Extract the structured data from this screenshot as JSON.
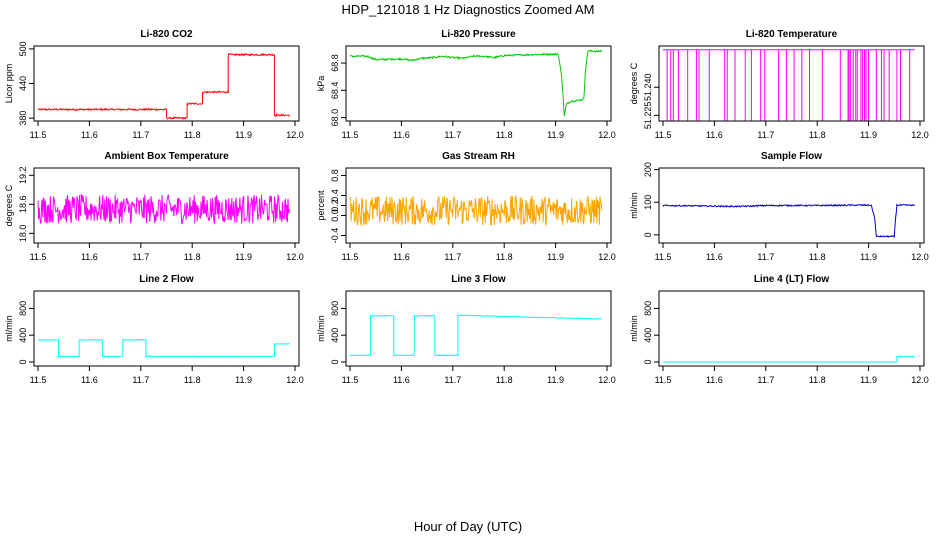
{
  "title": "HDP_121018  1 Hz Diagnostics Zoomed AM",
  "xlabel": "Hour of Day (UTC)",
  "chart_data": [
    {
      "type": "line",
      "title": "Li-820 CO2",
      "ylabel": "Licor ppm",
      "color": "#ff0000",
      "xlim": [
        11.5,
        12.0
      ],
      "ylim": [
        375,
        505
      ],
      "yticks": [
        "380",
        "440",
        "500"
      ],
      "ytick_values": [
        380,
        440,
        500
      ],
      "xticks": [
        "11.5",
        "11.6",
        "11.7",
        "11.8",
        "11.9",
        "12.0"
      ],
      "series": [
        {
          "noise": 1.5,
          "points": [
            [
              11.5,
              395
            ],
            [
              11.75,
              395
            ],
            [
              11.75,
              380
            ],
            [
              11.79,
              380
            ],
            [
              11.79,
              405
            ],
            [
              11.82,
              405
            ],
            [
              11.82,
              425
            ],
            [
              11.87,
              425
            ],
            [
              11.87,
              490
            ],
            [
              11.96,
              490
            ],
            [
              11.96,
              385
            ],
            [
              11.99,
              385
            ]
          ]
        }
      ]
    },
    {
      "type": "line",
      "title": "Li-820 Pressure",
      "ylabel": "kPa",
      "color": "#00cc00",
      "xlim": [
        11.5,
        12.0
      ],
      "ylim": [
        67.95,
        69.05
      ],
      "yticks": [
        "68.0",
        "68.4",
        "68.8"
      ],
      "ytick_values": [
        68.0,
        68.4,
        68.8
      ],
      "xticks": [
        "11.5",
        "11.6",
        "11.7",
        "11.8",
        "11.9",
        "12.0"
      ],
      "series": [
        {
          "noise": 0.012,
          "points": [
            [
              11.5,
              68.9
            ],
            [
              11.535,
              68.9
            ],
            [
              11.54,
              68.88
            ],
            [
              11.55,
              68.85
            ],
            [
              11.6,
              68.86
            ],
            [
              11.62,
              68.84
            ],
            [
              11.64,
              68.87
            ],
            [
              11.66,
              68.88
            ],
            [
              11.68,
              68.9
            ],
            [
              11.7,
              68.88
            ],
            [
              11.72,
              68.87
            ],
            [
              11.74,
              68.9
            ],
            [
              11.76,
              68.9
            ],
            [
              11.78,
              68.88
            ],
            [
              11.8,
              68.91
            ],
            [
              11.84,
              68.92
            ],
            [
              11.88,
              68.93
            ],
            [
              11.905,
              68.93
            ],
            [
              11.912,
              68.6
            ],
            [
              11.917,
              68.02
            ],
            [
              11.921,
              68.2
            ],
            [
              11.93,
              68.24
            ],
            [
              11.95,
              68.26
            ],
            [
              11.955,
              68.28
            ],
            [
              11.958,
              68.7
            ],
            [
              11.963,
              68.98
            ],
            [
              11.98,
              68.97
            ],
            [
              11.99,
              68.98
            ]
          ]
        }
      ]
    },
    {
      "type": "line",
      "title": "Li-820 Temperature",
      "ylabel": "degrees C",
      "color": "#ff00ff",
      "xlim": [
        11.5,
        12.0
      ],
      "ylim": [
        51.222,
        51.262
      ],
      "yticks": [
        "51.225",
        "51.240"
      ],
      "ytick_values": [
        51.225,
        51.24
      ],
      "xticks": [
        "11.5",
        "11.6",
        "11.7",
        "11.8",
        "11.9",
        "12.0"
      ],
      "series": [
        {
          "noise": 0,
          "points": [
            [
              11.5,
              51.26
            ],
            [
              11.99,
              51.26
            ]
          ]
        }
      ]
    },
    {
      "type": "line",
      "title": "Ambient Box Temperature",
      "ylabel": "degrees C",
      "color": "#ff00ff",
      "xlim": [
        11.5,
        12.0
      ],
      "ylim": [
        17.8,
        19.35
      ],
      "yticks": [
        "18.0",
        "18.6",
        "19.2"
      ],
      "ytick_values": [
        18.0,
        18.6,
        19.2
      ],
      "xticks": [
        "11.5",
        "11.6",
        "11.7",
        "11.8",
        "11.9",
        "12.0"
      ],
      "series": [
        {
          "noise": 0.3,
          "points": [
            [
              11.5,
              18.5
            ],
            [
              11.99,
              18.5
            ]
          ]
        }
      ]
    },
    {
      "type": "line",
      "title": "Gas Stream RH",
      "ylabel": "percent",
      "color": "#ffa500",
      "xlim": [
        11.5,
        12.0
      ],
      "ylim": [
        -0.55,
        0.95
      ],
      "yticks": [
        "-0.4",
        "0.0",
        "0.2",
        "0.4",
        "0.8"
      ],
      "ytick_values": [
        -0.4,
        0.0,
        0.2,
        0.4,
        0.8
      ],
      "xticks": [
        "11.5",
        "11.6",
        "11.7",
        "11.8",
        "11.9",
        "12.0"
      ],
      "series": [
        {
          "noise": 0.3,
          "points": [
            [
              11.5,
              0.1
            ],
            [
              11.99,
              0.1
            ]
          ]
        }
      ]
    },
    {
      "type": "line",
      "title": "Sample Flow",
      "ylabel": "ml/min",
      "color": "#0000cc",
      "xlim": [
        11.5,
        12.0
      ],
      "ylim": [
        -25,
        205
      ],
      "yticks": [
        "0",
        "100",
        "200"
      ],
      "ytick_values": [
        0,
        100,
        200
      ],
      "xticks": [
        "11.5",
        "11.6",
        "11.7",
        "11.8",
        "11.9",
        "12.0"
      ],
      "series": [
        {
          "noise": 2,
          "points": [
            [
              11.5,
              90
            ],
            [
              11.6,
              88
            ],
            [
              11.65,
              87
            ],
            [
              11.7,
              90
            ],
            [
              11.8,
              90
            ],
            [
              11.87,
              91
            ],
            [
              11.905,
              91
            ],
            [
              11.912,
              50
            ],
            [
              11.915,
              -5
            ],
            [
              11.95,
              -5
            ],
            [
              11.952,
              40
            ],
            [
              11.955,
              91
            ],
            [
              11.99,
              91
            ]
          ]
        }
      ]
    },
    {
      "type": "line",
      "title": "Line 2 Flow",
      "ylabel": "ml/min",
      "color": "#00ffff",
      "xlim": [
        11.5,
        12.0
      ],
      "ylim": [
        -60,
        1060
      ],
      "yticks": [
        "0",
        "400",
        "800"
      ],
      "ytick_values": [
        0,
        400,
        800
      ],
      "xticks": [
        "11.5",
        "11.6",
        "11.7",
        "11.8",
        "11.9",
        "12.0"
      ],
      "series": [
        {
          "noise": 4,
          "points": [
            [
              11.5,
              330
            ],
            [
              11.54,
              330
            ],
            [
              11.54,
              85
            ],
            [
              11.58,
              85
            ],
            [
              11.58,
              330
            ],
            [
              11.625,
              330
            ],
            [
              11.625,
              85
            ],
            [
              11.665,
              85
            ],
            [
              11.665,
              330
            ],
            [
              11.71,
              330
            ],
            [
              11.71,
              85
            ],
            [
              11.96,
              85
            ],
            [
              11.96,
              270
            ],
            [
              11.99,
              270
            ]
          ]
        }
      ]
    },
    {
      "type": "line",
      "title": "Line 3 Flow",
      "ylabel": "ml/min",
      "color": "#00ffff",
      "xlim": [
        11.5,
        12.0
      ],
      "ylim": [
        -60,
        1060
      ],
      "yticks": [
        "0",
        "400",
        "800"
      ],
      "ytick_values": [
        0,
        400,
        800
      ],
      "xticks": [
        "11.5",
        "11.6",
        "11.7",
        "11.8",
        "11.9",
        "12.0"
      ],
      "series": [
        {
          "noise": 5,
          "points": [
            [
              11.5,
              100
            ],
            [
              11.54,
              100
            ],
            [
              11.54,
              690
            ],
            [
              11.585,
              690
            ],
            [
              11.585,
              100
            ],
            [
              11.625,
              100
            ],
            [
              11.625,
              690
            ],
            [
              11.665,
              690
            ],
            [
              11.665,
              100
            ],
            [
              11.71,
              100
            ],
            [
              11.71,
              700
            ],
            [
              11.99,
              640
            ]
          ]
        }
      ]
    },
    {
      "type": "line",
      "title": "Line 4 (LT) Flow",
      "ylabel": "ml/min",
      "color": "#00ffff",
      "xlim": [
        11.5,
        12.0
      ],
      "ylim": [
        -60,
        1060
      ],
      "yticks": [
        "0",
        "400",
        "800"
      ],
      "ytick_values": [
        0,
        400,
        800
      ],
      "xticks": [
        "11.5",
        "11.6",
        "11.7",
        "11.8",
        "11.9",
        "12.0"
      ],
      "series": [
        {
          "noise": 0.5,
          "points": [
            [
              11.5,
              0
            ],
            [
              11.955,
              0
            ],
            [
              11.955,
              80
            ],
            [
              11.99,
              80
            ]
          ]
        }
      ]
    }
  ]
}
